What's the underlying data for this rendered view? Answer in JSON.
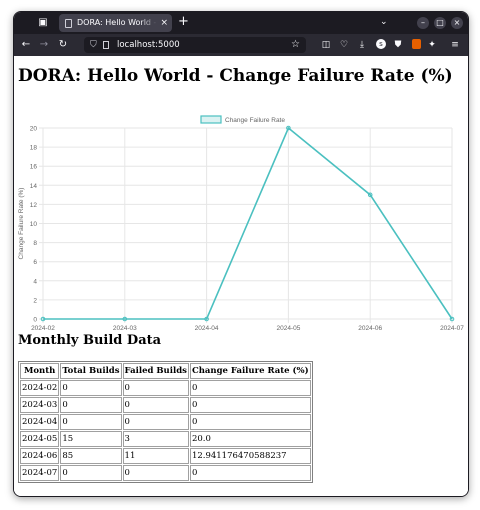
{
  "browser": {
    "tab_title": "DORA: Hello World - Change Failure Rate (%)",
    "tab_close_glyph": "×",
    "new_tab_glyph": "+",
    "tabs_overflow_glyph": "⌄",
    "url": "localhost:5000",
    "window_buttons": {
      "minimize": "–",
      "maximize": "□",
      "close": "×"
    },
    "nav": {
      "back": "←",
      "forward": "→",
      "reload": "↻"
    },
    "icons": [
      "sidebar-icon",
      "pocket-icon",
      "downloads-icon",
      "account-icon",
      "extensions-icon",
      "menu-icon"
    ],
    "account_initial": "s"
  },
  "page": {
    "title": "DORA: Hello World - Change Failure Rate (%)",
    "section_title": "Monthly Build Data"
  },
  "colors": {
    "line": "#4bc0c0",
    "line_fill": "rgba(75,192,192,0.2)",
    "grid": "#e6e6e6",
    "tick": "#666666"
  },
  "chart_data": {
    "type": "line",
    "categories": [
      "2024-02",
      "2024-03",
      "2024-04",
      "2024-05",
      "2024-06",
      "2024-07"
    ],
    "series": [
      {
        "name": "Change Failure Rate",
        "values": [
          0,
          0,
          0,
          20,
          13,
          0
        ]
      }
    ],
    "ylabel": "Change Failure Rate (%)",
    "ylim": [
      0,
      20
    ],
    "yticks": [
      0,
      2,
      4,
      6,
      8,
      10,
      12,
      14,
      16,
      18,
      20
    ],
    "legend": "top-center",
    "grid": true
  },
  "table": {
    "headers": [
      "Month",
      "Total Builds",
      "Failed Builds",
      "Change Failure Rate (%)"
    ],
    "rows": [
      [
        "2024-02",
        "0",
        "0",
        "0"
      ],
      [
        "2024-03",
        "0",
        "0",
        "0"
      ],
      [
        "2024-04",
        "0",
        "0",
        "0"
      ],
      [
        "2024-05",
        "15",
        "3",
        "20.0"
      ],
      [
        "2024-06",
        "85",
        "11",
        "12.941176470588237"
      ],
      [
        "2024-07",
        "0",
        "0",
        "0"
      ]
    ]
  }
}
